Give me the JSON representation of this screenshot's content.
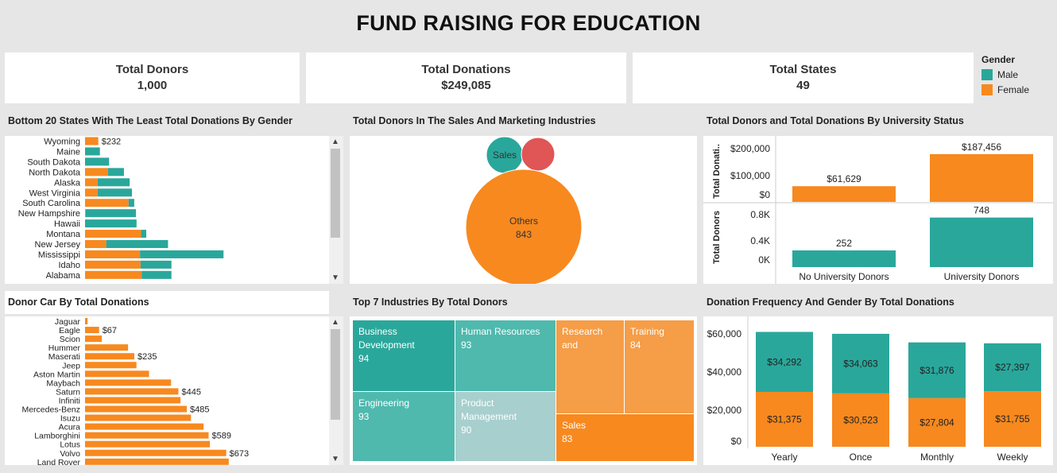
{
  "dashboard": {
    "title": "FUND RAISING FOR EDUCATION"
  },
  "colors": {
    "male": "#2aa79b",
    "female": "#f7891f",
    "female_light": "#f59d47",
    "male_light": "#4fb9ae",
    "male_pale": "#a7cfcd",
    "unknown": "#e05555"
  },
  "kpis": [
    {
      "label": "Total Donors",
      "value": "1,000"
    },
    {
      "label": "Total Donations",
      "value": "$249,085"
    },
    {
      "label": "Total States",
      "value": "49"
    }
  ],
  "legend": {
    "title": "Gender",
    "items": [
      "Male",
      "Female"
    ]
  },
  "panels": {
    "states": "Bottom 20 States With The Least Total Donations By Gender",
    "bubbles": "Total Donors In The Sales And Marketing Industries",
    "university": "Total Donors and Total Donations By University Status",
    "cars": "Donor Car By Total Donations",
    "industries": "Top 7 Industries By Total Donors",
    "frequency": "Donation Frequency And Gender By Total Donations"
  },
  "chart_data": [
    {
      "id": "states",
      "type": "bar",
      "orientation": "horizontal",
      "stacked": true,
      "categories": [
        "Wyoming",
        "Maine",
        "South Dakota",
        "North Dakota",
        "Alaska",
        "West Virginia",
        "South Carolina",
        "New Hampshire",
        "Hawaii",
        "Montana",
        "New Jersey",
        "Mississippi",
        "Idaho",
        "Alabama"
      ],
      "series": [
        {
          "name": "Female",
          "values": [
            232,
            0,
            0,
            400,
            220,
            220,
            760,
            10,
            0,
            980,
            370,
            960,
            970,
            990
          ]
        },
        {
          "name": "Male",
          "values": [
            0,
            260,
            420,
            280,
            560,
            600,
            100,
            880,
            900,
            90,
            1080,
            1460,
            540,
            520
          ]
        }
      ],
      "data_labels": {
        "0": "$232"
      }
    },
    {
      "id": "bubbles",
      "type": "bubble",
      "items": [
        {
          "label": "Sales",
          "value": 0,
          "show_value": false,
          "color": "male"
        },
        {
          "label": "",
          "value": 0,
          "show_value": false,
          "color": "unknown"
        },
        {
          "label": "Others",
          "value": 843,
          "show_value": true,
          "color": "female"
        }
      ]
    },
    {
      "id": "university",
      "type": "bar",
      "categories": [
        "No University Donors",
        "University Donors"
      ],
      "panes": [
        {
          "ylabel": "Total Donati..",
          "ticks": [
            "$200,000",
            "$100,000",
            "$0"
          ],
          "ylim": [
            0,
            240000
          ],
          "values": [
            61629,
            187456
          ],
          "labels": [
            "$61,629",
            "$187,456"
          ],
          "color": "female"
        },
        {
          "ylabel": "Total Donors",
          "ticks": [
            "0.8K",
            "0.4K",
            "0K"
          ],
          "ylim": [
            0,
            900
          ],
          "values": [
            252,
            748
          ],
          "labels": [
            "252",
            "748"
          ],
          "color": "male"
        }
      ]
    },
    {
      "id": "cars",
      "type": "bar",
      "orientation": "horizontal",
      "categories": [
        "Jaguar",
        "Eagle",
        "Scion",
        "Hummer",
        "Maserati",
        "Jeep",
        "Aston Martin",
        "Maybach",
        "Saturn",
        "Infiniti",
        "Mercedes-Benz",
        "Isuzu",
        "Acura",
        "Lamborghini",
        "Lotus",
        "Volvo",
        "Land Rover"
      ],
      "values": [
        12,
        67,
        80,
        205,
        235,
        245,
        305,
        410,
        445,
        455,
        485,
        505,
        565,
        589,
        595,
        673,
        685
      ],
      "data_labels": {
        "1": "$67",
        "4": "$235",
        "8": "$445",
        "10": "$485",
        "13": "$589",
        "15": "$673"
      }
    },
    {
      "id": "industries",
      "type": "treemap",
      "items": [
        {
          "label": "Business Development",
          "value": 94,
          "color": "male"
        },
        {
          "label": "Human Resources",
          "value": 93,
          "color": "male_light"
        },
        {
          "label": "Research and",
          "value": null,
          "color": "female_light"
        },
        {
          "label": "Training",
          "value": 84,
          "color": "female_light"
        },
        {
          "label": "Engineering",
          "value": 93,
          "color": "male_light"
        },
        {
          "label": "Product Management",
          "value": 90,
          "color": "male_pale"
        },
        {
          "label": "Sales",
          "value": 83,
          "color": "female"
        }
      ]
    },
    {
      "id": "frequency",
      "type": "bar",
      "stacked": true,
      "categories": [
        "Yearly",
        "Once",
        "Monthly",
        "Weekly"
      ],
      "series": [
        {
          "name": "Female",
          "values": [
            31375,
            30523,
            27804,
            31755
          ],
          "labels": [
            "$31,375",
            "$30,523",
            "$27,804",
            "$31,755"
          ]
        },
        {
          "name": "Male",
          "values": [
            34292,
            34063,
            31876,
            27397
          ],
          "labels": [
            "$34,292",
            "$34,063",
            "$31,876",
            "$27,397"
          ]
        }
      ],
      "ticks": [
        "$60,000",
        "$40,000",
        "$20,000",
        "$0"
      ],
      "ylim": [
        0,
        70000
      ]
    }
  ]
}
